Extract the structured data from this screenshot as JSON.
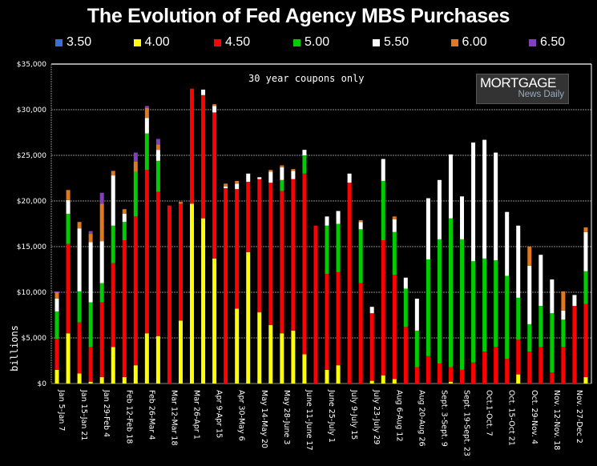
{
  "chart_data": {
    "type": "bar",
    "stacked": true,
    "title": "The Evolution of Fed Agency MBS Purchases",
    "annotation": "30 year coupons only",
    "watermark": {
      "line1": "MORTGAGE",
      "line2": "News Daily"
    },
    "xlabel": "",
    "ylabel": "billions",
    "ylim": [
      0,
      35000
    ],
    "yticks": [
      0,
      5000,
      10000,
      15000,
      20000,
      25000,
      30000,
      35000
    ],
    "ytick_labels": [
      "$0",
      "$5,000",
      "$10,000",
      "$15,000",
      "$20,000",
      "$25,000",
      "$30,000",
      "$35,000"
    ],
    "grid": true,
    "legend_position": "top",
    "x_tick_labels": [
      "Jan 5-Jan 7",
      "Jan 15-Jan 21",
      "Jan 29-Feb 4",
      "Feb 12-Feb 18",
      "Feb 26-Mar 4",
      "Mar 12-Mar 18",
      "Mar 26-Apr 1",
      "Apr 9-Apr 15",
      "Apr 30-May 6",
      "May 14-May 20",
      "May 28-June 3",
      "June 11-June 17",
      "June 25-July 1",
      "July 9-July 15",
      "July 23-July 29",
      "Aug 6-Aug 12",
      "Aug 20-Aug 26",
      "Sept. 3-Sept. 9",
      "Sept. 19-Sept. 23",
      "Oct.1-Oct. 7",
      "Oct. 15-Oct 21",
      "Oct. 29-Nov. 4",
      "Nov. 12-Nov. 18",
      "Nov. 27-Dec 2"
    ],
    "bar_count": 48,
    "series": [
      {
        "name": "3.50",
        "color": "#3a6fd8",
        "values": [
          0,
          0,
          0,
          0,
          0,
          0,
          0,
          0,
          0,
          0,
          0,
          0,
          0,
          0,
          0,
          0,
          0,
          0,
          0,
          0,
          0,
          0,
          0,
          0,
          0,
          0,
          0,
          0,
          0,
          0,
          0,
          0,
          0,
          0,
          0,
          0,
          0,
          0,
          0,
          0,
          0,
          0,
          0,
          0,
          0,
          0,
          0,
          0
        ]
      },
      {
        "name": "4.00",
        "color": "#ffff00",
        "values": [
          1500,
          5500,
          1100,
          200,
          700,
          4000,
          700,
          2000,
          5500,
          5200,
          0,
          6900,
          19700,
          18100,
          13700,
          0,
          8200,
          14400,
          7800,
          6400,
          5500,
          5800,
          3200,
          0,
          1500,
          2000,
          0,
          0,
          300,
          900,
          500,
          0,
          0,
          0,
          0,
          200,
          0,
          0,
          0,
          0,
          0,
          1000,
          0,
          0,
          0,
          0,
          0,
          700
        ]
      },
      {
        "name": "4.50",
        "color": "#ff0000",
        "values": [
          3400,
          9800,
          5600,
          3800,
          8200,
          9200,
          15000,
          16300,
          17900,
          15800,
          19500,
          12800,
          12600,
          13500,
          16000,
          21400,
          13100,
          7700,
          14600,
          15600,
          15600,
          16600,
          19800,
          17300,
          10500,
          10200,
          22000,
          11000,
          7400,
          14800,
          11400,
          6200,
          1800,
          3000,
          2200,
          1600,
          1500,
          2300,
          3500,
          4000,
          2700,
          3800,
          3500,
          4000,
          1200,
          4000,
          8500,
          8000
        ]
      },
      {
        "name": "5.00",
        "color": "#00cc00",
        "values": [
          3000,
          3300,
          3400,
          4900,
          2100,
          4100,
          2000,
          4900,
          4000,
          3400,
          0,
          0,
          0,
          0,
          0,
          0,
          0,
          0,
          0,
          0,
          1200,
          0,
          2000,
          0,
          5300,
          5300,
          0,
          5900,
          0,
          6500,
          4700,
          4200,
          4000,
          10600,
          13600,
          16300,
          14300,
          11100,
          10200,
          9500,
          9100,
          4600,
          3000,
          4500,
          6500,
          3000,
          0,
          3600
        ]
      },
      {
        "name": "5.50",
        "color": "#ffffff",
        "values": [
          1400,
          1500,
          6900,
          6600,
          4600,
          5500,
          900,
          0,
          1700,
          1200,
          0,
          0,
          0,
          600,
          700,
          200,
          600,
          900,
          200,
          1200,
          1400,
          900,
          600,
          0,
          1000,
          1400,
          1000,
          800,
          700,
          2400,
          1400,
          1200,
          3500,
          6700,
          6500,
          7000,
          4700,
          13000,
          13000,
          11800,
          7000,
          7900,
          6400,
          5600,
          3700,
          1000,
          1200,
          4300
        ]
      },
      {
        "name": "6.00",
        "color": "#e07820",
        "values": [
          700,
          1100,
          700,
          900,
          4100,
          500,
          500,
          1100,
          1100,
          600,
          0,
          200,
          0,
          0,
          200,
          300,
          300,
          0,
          0,
          200,
          200,
          200,
          0,
          0,
          0,
          0,
          0,
          200,
          0,
          0,
          300,
          0,
          0,
          0,
          0,
          0,
          0,
          0,
          0,
          0,
          0,
          0,
          2100,
          0,
          0,
          2100,
          0,
          500
        ]
      },
      {
        "name": "6.50",
        "color": "#8040c0",
        "values": [
          100,
          0,
          0,
          300,
          1200,
          0,
          0,
          1000,
          200,
          600,
          0,
          0,
          0,
          0,
          0,
          0,
          0,
          0,
          0,
          0,
          0,
          0,
          0,
          0,
          0,
          0,
          0,
          0,
          0,
          0,
          0,
          0,
          0,
          0,
          0,
          0,
          0,
          0,
          0,
          0,
          0,
          0,
          0,
          0,
          0,
          0,
          0,
          0
        ]
      }
    ]
  }
}
